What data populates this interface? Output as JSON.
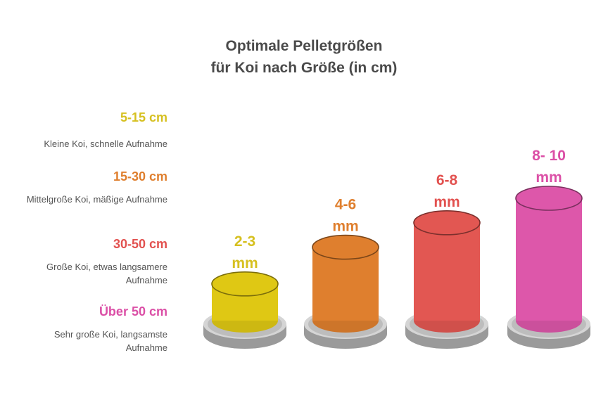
{
  "chart_data": {
    "type": "bar",
    "title": [
      "Optimale Pelletgrößen",
      "für Koi nach Größe (in cm)"
    ],
    "xlabel": "",
    "ylabel": "",
    "categories": [
      "5-15 cm",
      "15-30 cm",
      "30-50 cm",
      "Über 50 cm"
    ],
    "values": [
      3,
      6,
      8,
      10
    ],
    "value_labels": [
      [
        "2-3",
        "mm"
      ],
      [
        "4-6",
        "mm"
      ],
      [
        "6-8",
        "mm"
      ],
      [
        "8- 10",
        "mm"
      ]
    ],
    "descriptions": [
      "Kleine Koi, schnelle Aufnahme",
      "Mittelgroße Koi, mäßige Aufnahme",
      "Große Koi, etwas langsamere Aufnahme",
      "Sehr große Koi, langsamste Aufnahme"
    ],
    "colors": [
      "#dfc814",
      "#df7f2e",
      "#e25752",
      "#dd57aa"
    ],
    "label_colors": [
      "#d6c020",
      "#df7f2e",
      "#e2514f",
      "#db4fa6"
    ],
    "ylim": [
      0,
      10
    ],
    "grid": false,
    "legend": "left"
  }
}
